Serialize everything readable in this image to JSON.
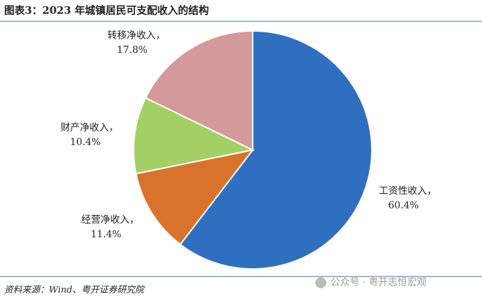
{
  "chart_data": {
    "type": "pie",
    "title": "图表3：2023 年城镇居民可支配收入的结构",
    "categories": [
      "工资性收入，",
      "经营净收入，",
      "财产净收入，",
      "转移净收入，"
    ],
    "values": [
      60.4,
      11.4,
      10.4,
      17.8
    ],
    "value_labels": [
      "60.4%",
      "11.4%",
      "10.4%",
      "17.8%"
    ],
    "colors": [
      "#2f6fbf",
      "#d9732c",
      "#a3d065",
      "#d29a9a"
    ],
    "source": "资料来源：Wind、粤开证券研究院",
    "watermark": "公众号 · 粤开志恒宏观"
  }
}
